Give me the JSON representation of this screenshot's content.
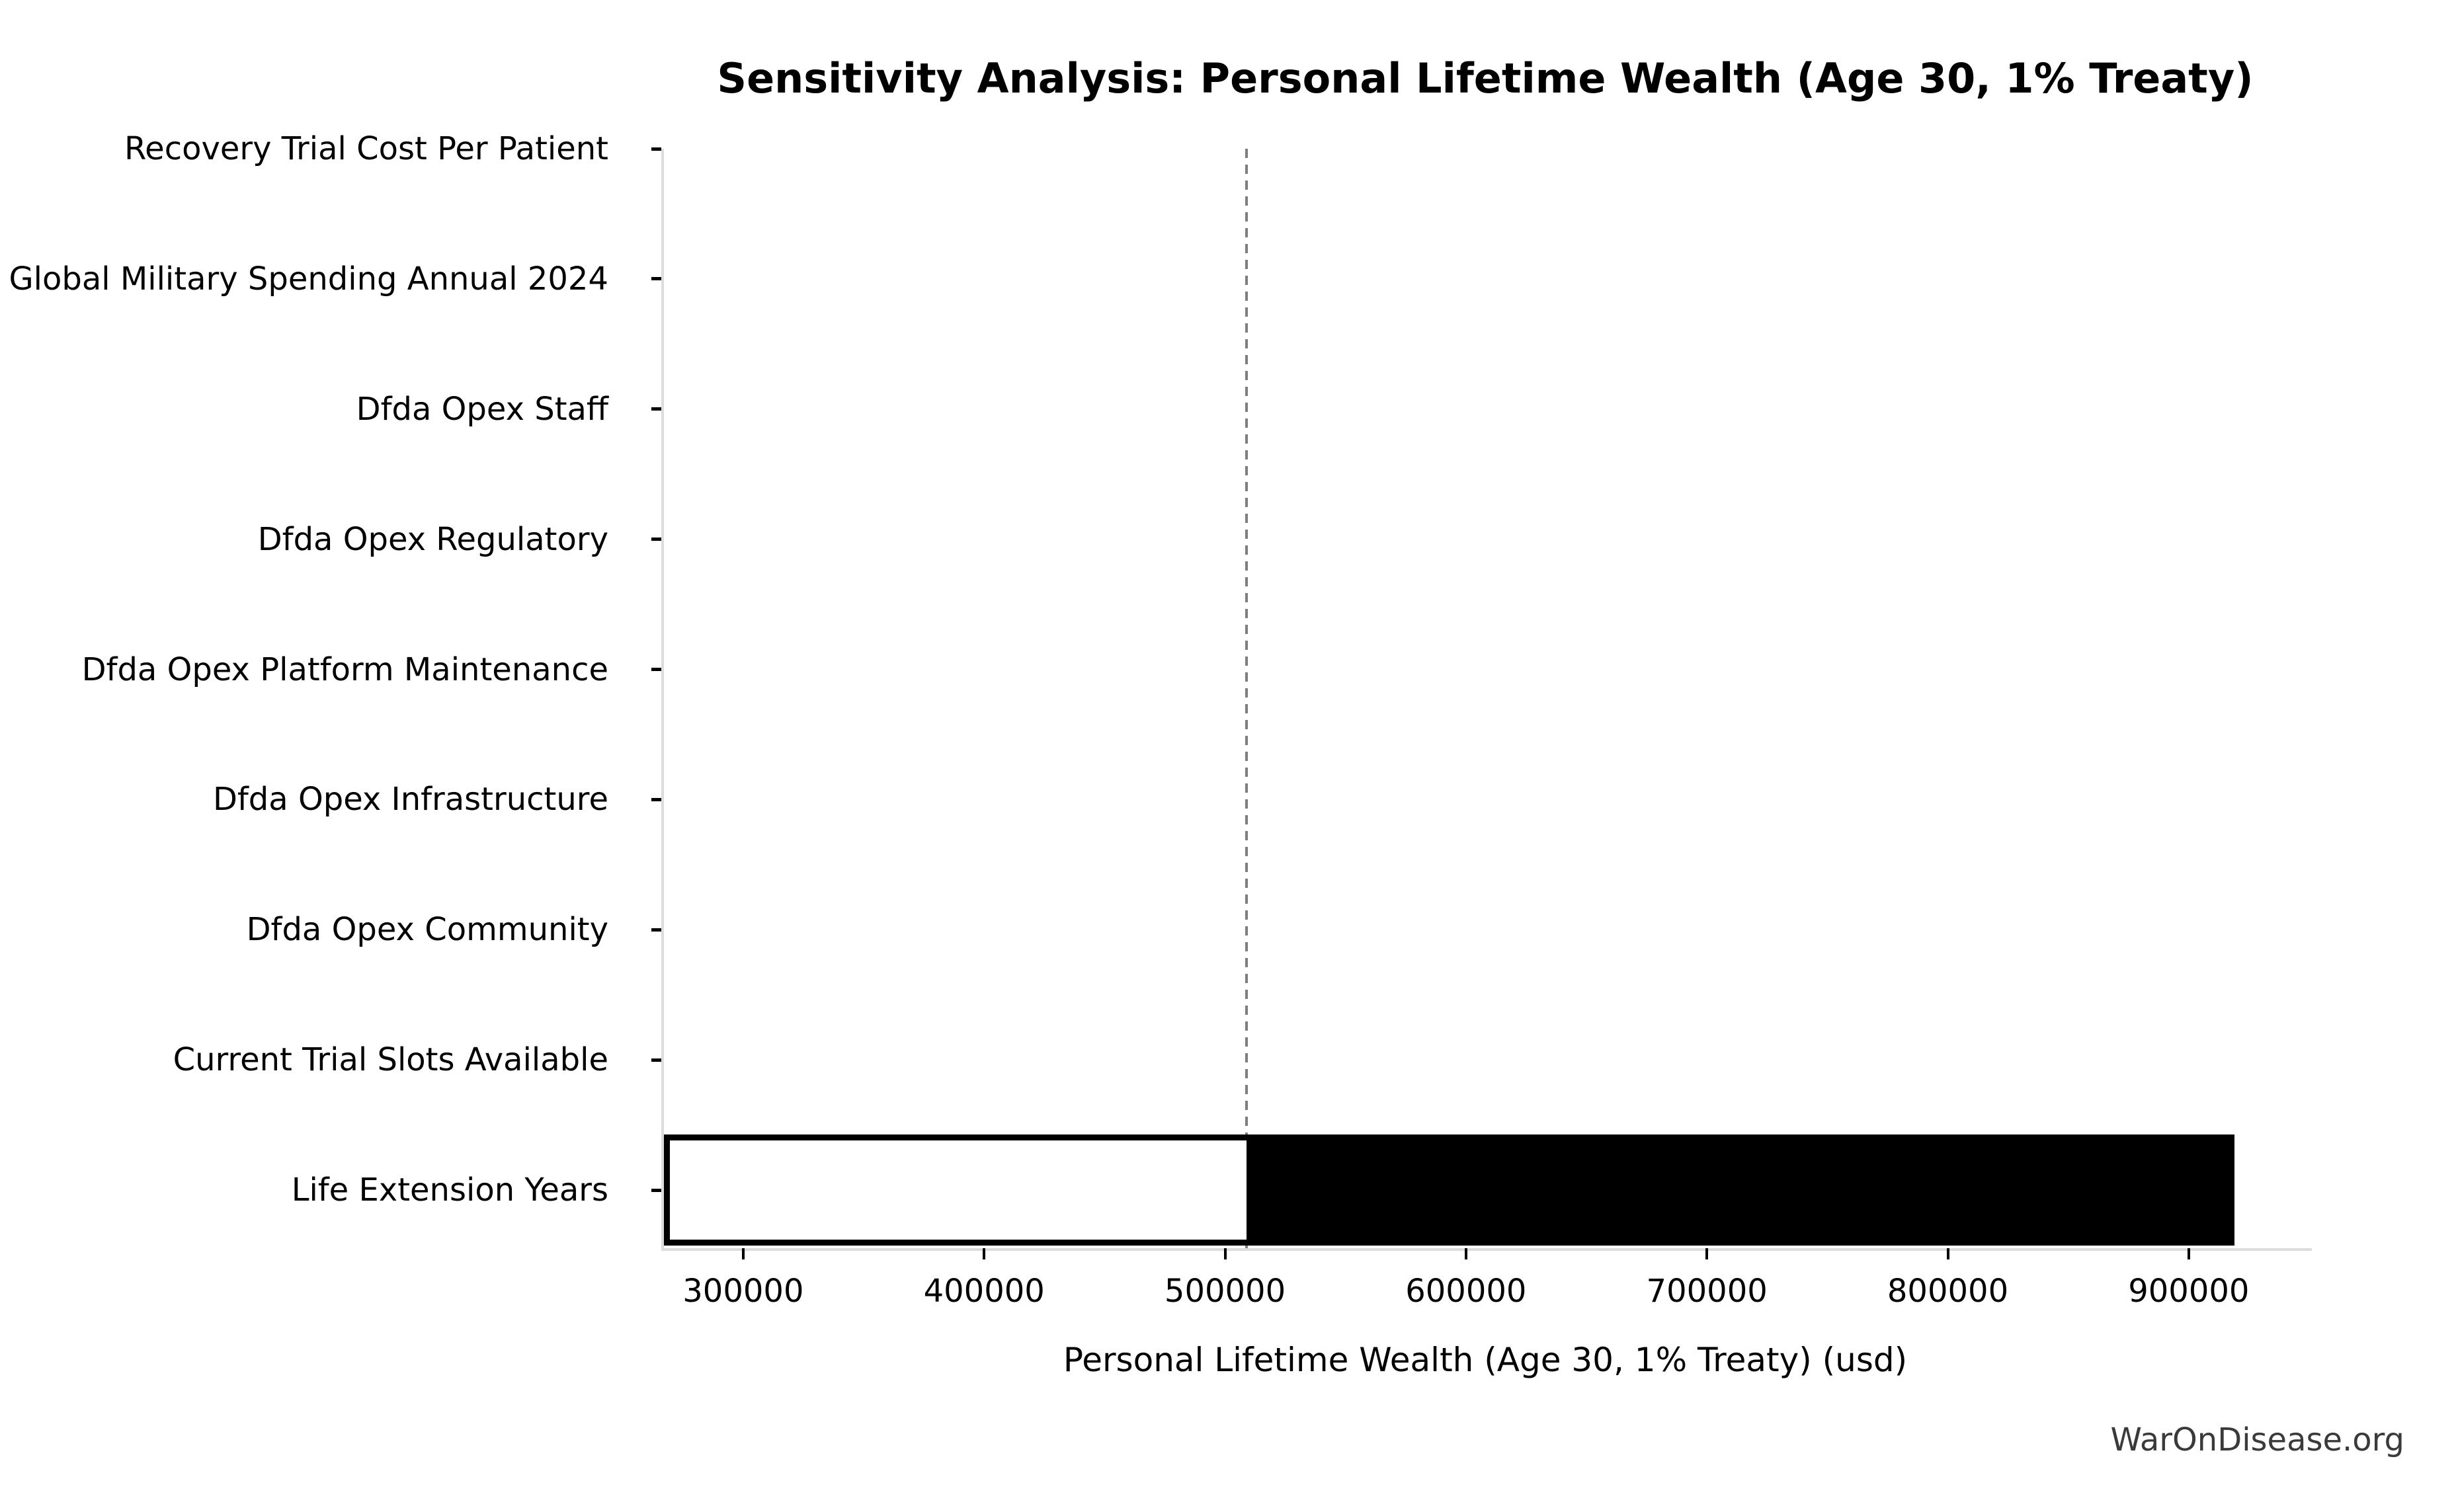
{
  "watermark": "WarOnDisease.org",
  "chart_data": {
    "type": "bar",
    "orientation": "horizontal",
    "subtype": "tornado-sensitivity",
    "title": "Sensitivity Analysis: Personal Lifetime Wealth (Age 30, 1% Treaty)",
    "xlabel": "Personal Lifetime Wealth (Age 30, 1% Treaty) (usd)",
    "ylabel": "",
    "grid": false,
    "legend": false,
    "xlim": [
      266000,
      950000
    ],
    "xticks": [
      300000,
      400000,
      500000,
      600000,
      700000,
      800000,
      900000
    ],
    "xtick_labels": [
      "300000",
      "400000",
      "500000",
      "600000",
      "700000",
      "800000",
      "900000"
    ],
    "baseline_value": 509000,
    "categories": [
      "Recovery Trial Cost Per Patient",
      "Global Military Spending Annual 2024",
      "Dfda Opex Staff",
      "Dfda Opex Regulatory",
      "Dfda Opex Platform Maintenance",
      "Dfda Opex Infrastructure",
      "Dfda Opex Community",
      "Current Trial Slots Available",
      "Life Extension Years"
    ],
    "bars": [
      {
        "label": "Recovery Trial Cost Per Patient",
        "low": 509000,
        "base": 509000,
        "high": 509000
      },
      {
        "label": "Global Military Spending Annual 2024",
        "low": 509000,
        "base": 509000,
        "high": 509000
      },
      {
        "label": "Dfda Opex Staff",
        "low": 509000,
        "base": 509000,
        "high": 509000
      },
      {
        "label": "Dfda Opex Regulatory",
        "low": 509000,
        "base": 509000,
        "high": 509000
      },
      {
        "label": "Dfda Opex Platform Maintenance",
        "low": 509000,
        "base": 509000,
        "high": 509000
      },
      {
        "label": "Dfda Opex Infrastructure",
        "low": 509000,
        "base": 509000,
        "high": 509000
      },
      {
        "label": "Dfda Opex Community",
        "low": 509000,
        "base": 509000,
        "high": 509000
      },
      {
        "label": "Current Trial Slots Available",
        "low": 509000,
        "base": 509000,
        "high": 509000
      },
      {
        "label": "Life Extension Years",
        "low": 267000,
        "base": 509000,
        "high": 919000
      }
    ],
    "colors": {
      "bar_low_fill": "#ffffff",
      "bar_high_fill": "#000000",
      "bar_edge": "#000000",
      "baseline_line": "#7f7f7f",
      "spine": "#dcdcdc",
      "tick": "#000000",
      "text": "#000000",
      "watermark": "#3a3a3a"
    }
  }
}
